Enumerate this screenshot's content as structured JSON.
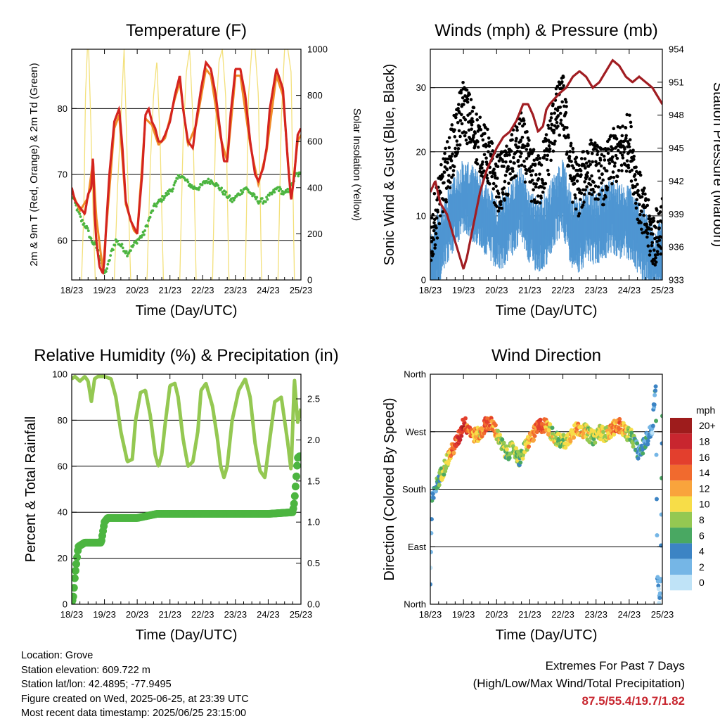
{
  "chart_data": [
    {
      "type": "line",
      "title": "Temperature (F)",
      "xlabel": "Time (Day/UTC)",
      "ylabel": "2m & 9m T (Red, Orange) & 2m Td (Green)",
      "ylabel_right": "Solar Insolation (Yellow)",
      "x_tick_labels": [
        "18/23",
        "19/23",
        "20/23",
        "21/23",
        "22/23",
        "23/23",
        "24/23",
        "25/23"
      ],
      "xlim": [
        0,
        7
      ],
      "ylim": [
        54,
        89
      ],
      "y_ticks": [
        60,
        70,
        80
      ],
      "y2lim": [
        0,
        1000
      ],
      "y2_ticks": [
        0,
        200,
        400,
        600,
        800,
        1000
      ],
      "grid": "horizontal at left-axis major ticks",
      "colors": {
        "t2m": "#d4241f",
        "t9m": "#f08c28",
        "td": "#4cb540",
        "solar": "#f3e07a"
      },
      "series": [
        {
          "name": "2m T",
          "axis": "left",
          "x": [
            0,
            0.1,
            0.25,
            0.4,
            0.5,
            0.6,
            0.65,
            0.7,
            0.75,
            0.85,
            0.95,
            1.0,
            1.05,
            1.15,
            1.3,
            1.45,
            1.55,
            1.65,
            1.8,
            1.9,
            2.0,
            2.15,
            2.25,
            2.35,
            2.45,
            2.55,
            2.65,
            2.75,
            2.85,
            3.0,
            3.15,
            3.3,
            3.4,
            3.55,
            3.7,
            3.8,
            3.95,
            4.1,
            4.25,
            4.4,
            4.55,
            4.65,
            4.75,
            4.85,
            5.0,
            5.15,
            5.3,
            5.45,
            5.6,
            5.7,
            5.85,
            5.95,
            6.05,
            6.25,
            6.45,
            6.6,
            6.7,
            6.8,
            6.9,
            7.0
          ],
          "y": [
            68,
            66,
            65,
            64,
            67,
            68,
            73,
            64,
            60,
            56,
            55,
            57,
            62,
            70,
            78,
            80,
            74,
            66,
            63,
            62,
            61,
            70,
            79,
            80,
            78,
            77,
            75,
            75,
            76,
            78,
            82,
            85,
            80,
            75,
            74,
            78,
            83,
            87,
            86,
            82,
            76,
            72,
            72,
            79,
            86,
            86,
            82,
            75,
            70,
            69,
            71,
            74,
            80,
            86,
            83,
            72,
            66,
            70,
            76,
            77
          ]
        },
        {
          "name": "9m T",
          "axis": "left",
          "x": [
            0,
            0.25,
            0.5,
            0.65,
            0.75,
            0.95,
            1.05,
            1.3,
            1.45,
            1.65,
            1.9,
            2.0,
            2.25,
            2.45,
            2.65,
            2.85,
            3.15,
            3.3,
            3.55,
            3.8,
            4.1,
            4.25,
            4.55,
            4.75,
            5.0,
            5.15,
            5.45,
            5.7,
            5.95,
            6.25,
            6.45,
            6.7,
            6.9,
            7.0
          ],
          "y": [
            67.5,
            64.5,
            66.5,
            72,
            63.5,
            55.5,
            61.5,
            77,
            79,
            65.5,
            61.5,
            61,
            78.5,
            77.5,
            74.5,
            75.5,
            81.5,
            84,
            74.5,
            77.5,
            86,
            85,
            75.5,
            72,
            85,
            85,
            74.5,
            68.5,
            73.5,
            85,
            82,
            66,
            75,
            76
          ]
        },
        {
          "name": "2m Td",
          "axis": "left",
          "x": [
            0,
            0.15,
            0.3,
            0.45,
            0.6,
            0.75,
            0.9,
            1.0,
            1.1,
            1.2,
            1.35,
            1.55,
            1.7,
            1.85,
            2.0,
            2.2,
            2.35,
            2.5,
            2.7,
            2.9,
            3.1,
            3.3,
            3.5,
            3.7,
            3.9,
            4.1,
            4.3,
            4.5,
            4.7,
            4.9,
            5.1,
            5.3,
            5.5,
            5.7,
            5.9,
            6.1,
            6.3,
            6.5,
            6.7,
            6.85,
            7.0
          ],
          "y": [
            67,
            65,
            63,
            62,
            60,
            59,
            57,
            55,
            56,
            58,
            60,
            59,
            58,
            59,
            60,
            61,
            63,
            65,
            66,
            67,
            68,
            70,
            69,
            68,
            68,
            69,
            69,
            68,
            67,
            66,
            67,
            68,
            67,
            66,
            66,
            67,
            68,
            67,
            68,
            70,
            70
          ]
        },
        {
          "name": "Solar Insolation",
          "axis": "right",
          "x": [
            0.3,
            0.37,
            0.42,
            0.5,
            0.58,
            0.65,
            0.72,
            1.3,
            1.4,
            1.5,
            1.6,
            1.7,
            1.8,
            2.3,
            2.4,
            2.5,
            2.6,
            2.7,
            2.8,
            3.3,
            3.4,
            3.5,
            3.6,
            3.7,
            3.8,
            4.3,
            4.4,
            4.5,
            4.6,
            4.7,
            4.8,
            5.3,
            5.4,
            5.5,
            5.6,
            5.7,
            5.8,
            6.3,
            6.4,
            6.5,
            6.6,
            6.7,
            6.8
          ],
          "y": [
            0,
            300,
            800,
            1080,
            700,
            300,
            0,
            0,
            400,
            700,
            1000,
            500,
            0,
            0,
            500,
            800,
            950,
            600,
            0,
            0,
            600,
            900,
            1000,
            700,
            0,
            0,
            700,
            950,
            1000,
            800,
            0,
            0,
            800,
            1000,
            1000,
            800,
            0,
            0,
            700,
            1000,
            1000,
            900,
            0
          ]
        }
      ]
    },
    {
      "type": "scatter",
      "title": "Winds (mph) & Pressure (mb)",
      "xlabel": "Time (Day/UTC)",
      "ylabel": "Sonic Wind & Gust (Blue, Black)",
      "ylabel_right": "Station Pressure (Maroon)",
      "x_tick_labels": [
        "18/23",
        "19/23",
        "20/23",
        "21/23",
        "22/23",
        "23/23",
        "24/23",
        "25/23"
      ],
      "xlim": [
        0,
        7
      ],
      "ylim": [
        0,
        36
      ],
      "y_ticks": [
        0,
        10,
        20,
        30
      ],
      "y2lim": [
        933,
        954
      ],
      "y2_ticks": [
        933,
        936,
        939,
        942,
        945,
        948,
        951,
        954
      ],
      "grid": "horizontal at left-axis major ticks",
      "colors": {
        "wind": "#4f96d2",
        "gust": "#000000",
        "pressure": "#a11d22"
      },
      "series": [
        {
          "name": "Sonic Wind",
          "axis": "left",
          "x": [
            0,
            0.25,
            0.5,
            0.75,
            1.0,
            1.25,
            1.5,
            1.75,
            2.0,
            2.25,
            2.5,
            2.75,
            3.0,
            3.25,
            3.5,
            3.75,
            4.0,
            4.25,
            4.5,
            4.75,
            5.0,
            5.25,
            5.5,
            5.75,
            6.0,
            6.25,
            6.5,
            6.75,
            7.0
          ],
          "y": [
            2,
            6,
            9,
            12,
            14,
            13,
            12,
            10,
            8,
            9,
            11,
            13,
            9,
            8,
            9,
            12,
            14,
            9,
            8,
            10,
            9,
            10,
            11,
            10,
            10,
            8,
            6,
            4,
            5
          ]
        },
        {
          "name": "Gust",
          "axis": "left",
          "x": [
            0,
            0.25,
            0.5,
            0.75,
            1.0,
            1.25,
            1.5,
            1.75,
            2.0,
            2.25,
            2.5,
            2.75,
            3.0,
            3.25,
            3.5,
            3.75,
            4.0,
            4.25,
            4.5,
            4.75,
            5.0,
            5.25,
            5.5,
            5.75,
            6.0,
            6.25,
            6.5,
            6.75,
            7.0
          ],
          "y": [
            6,
            12,
            17,
            22,
            27,
            24,
            21,
            19,
            15,
            16,
            19,
            22,
            17,
            15,
            19,
            25,
            28,
            17,
            14,
            18,
            17,
            16,
            19,
            20,
            22,
            14,
            9,
            6,
            9
          ]
        },
        {
          "name": "Station Pressure",
          "axis": "right",
          "x": [
            0,
            0.15,
            0.3,
            0.5,
            0.7,
            0.9,
            1.0,
            1.1,
            1.3,
            1.5,
            1.7,
            2.0,
            2.2,
            2.4,
            2.6,
            2.8,
            2.95,
            3.1,
            3.25,
            3.4,
            3.5,
            3.6,
            3.75,
            3.9,
            4.1,
            4.3,
            4.5,
            4.7,
            4.9,
            5.1,
            5.3,
            5.5,
            5.7,
            5.9,
            6.1,
            6.3,
            6.5,
            6.7,
            6.9,
            7.0
          ],
          "y": [
            941,
            942,
            940,
            939,
            937,
            935,
            934,
            935,
            938,
            941,
            943,
            945,
            946,
            946.5,
            947.5,
            949,
            949,
            948,
            946.5,
            947,
            948.5,
            949,
            949.5,
            950,
            950.5,
            951.5,
            952,
            951.5,
            950.5,
            951,
            952,
            953,
            952.5,
            951.5,
            951,
            951.5,
            951,
            950.5,
            949.5,
            949
          ]
        }
      ]
    },
    {
      "type": "scatter",
      "title": "Relative Humidity (%) & Precipitation (in)",
      "xlabel": "Time (Day/UTC)",
      "ylabel": "Percent & Total Rainfall",
      "x_tick_labels": [
        "18/23",
        "19/23",
        "20/23",
        "21/23",
        "22/23",
        "23/23",
        "24/23",
        "25/23"
      ],
      "xlim": [
        0,
        7
      ],
      "ylim": [
        0,
        100
      ],
      "y_ticks": [
        0,
        20,
        40,
        60,
        80,
        100
      ],
      "y2lim": [
        0,
        2.8
      ],
      "y2_ticks": [
        "0.0",
        "0.5",
        "1.0",
        "1.5",
        "2.0",
        "2.5"
      ],
      "grid": "horizontal at left-axis major ticks",
      "colors": {
        "rh": "#94c852",
        "precip": "#4cb540"
      },
      "series": [
        {
          "name": "Relative Humidity",
          "axis": "left",
          "x": [
            0,
            0.1,
            0.25,
            0.4,
            0.5,
            0.6,
            0.7,
            0.8,
            1.0,
            1.2,
            1.35,
            1.5,
            1.7,
            1.85,
            1.95,
            2.1,
            2.25,
            2.4,
            2.55,
            2.65,
            2.75,
            2.85,
            3.0,
            3.15,
            3.25,
            3.4,
            3.55,
            3.7,
            3.85,
            3.95,
            4.1,
            4.3,
            4.45,
            4.55,
            4.65,
            4.75,
            4.9,
            5.1,
            5.3,
            5.45,
            5.6,
            5.75,
            5.9,
            6.05,
            6.2,
            6.4,
            6.6,
            6.7,
            6.8,
            6.9,
            7.0
          ],
          "y": [
            98,
            99,
            97,
            99,
            97,
            88,
            98,
            99,
            99,
            98,
            90,
            75,
            62,
            63,
            80,
            92,
            93,
            82,
            65,
            60,
            65,
            78,
            95,
            96,
            90,
            72,
            60,
            62,
            75,
            93,
            96,
            86,
            72,
            60,
            55,
            60,
            80,
            93,
            98,
            90,
            70,
            58,
            55,
            72,
            88,
            90,
            70,
            58,
            98,
            79,
            85
          ]
        },
        {
          "name": "Total Precipitation",
          "axis": "right",
          "x": [
            0,
            0.05,
            0.1,
            0.2,
            0.4,
            0.6,
            0.9,
            1.0,
            1.1,
            2.0,
            2.6,
            3.0,
            4.0,
            5.0,
            6.0,
            6.75,
            6.8,
            6.85,
            6.9,
            6.95,
            7.0
          ],
          "y": [
            0,
            0.1,
            0.35,
            0.7,
            0.75,
            0.75,
            0.75,
            1.0,
            1.05,
            1.05,
            1.1,
            1.1,
            1.1,
            1.1,
            1.1,
            1.12,
            1.25,
            1.5,
            1.78,
            1.8,
            1.8
          ]
        }
      ]
    },
    {
      "type": "scatter",
      "title": "Wind Direction",
      "xlabel": "Time (Day/UTC)",
      "ylabel": "Direction (Colored By Speed)",
      "x_tick_labels": [
        "18/23",
        "19/23",
        "20/23",
        "21/23",
        "22/23",
        "23/23",
        "24/23",
        "25/23"
      ],
      "xlim": [
        0,
        7
      ],
      "ylim": [
        0,
        360
      ],
      "y_ticks": [
        0,
        90,
        180,
        270,
        360
      ],
      "y_tick_labels": [
        "North",
        "East",
        "South",
        "West",
        "North"
      ],
      "grid": "horizontal at direction ticks",
      "legend": {
        "title": "mph",
        "placement": "right",
        "labels": [
          "20+",
          "18",
          "16",
          "14",
          "12",
          "10",
          "8",
          "6",
          "4",
          "2",
          "0"
        ],
        "colors": [
          "#9e1c1c",
          "#c8262f",
          "#e33f2d",
          "#f16a2e",
          "#f9a43c",
          "#f7dd48",
          "#94c852",
          "#49a862",
          "#3c84c4",
          "#75b6e6",
          "#bfe3f7"
        ]
      },
      "series": [
        {
          "name": "Direction",
          "x": [
            0,
            0.05,
            0.15,
            0.25,
            0.35,
            0.5,
            0.7,
            0.9,
            1.0,
            1.15,
            1.3,
            1.5,
            1.7,
            1.9,
            2.1,
            2.3,
            2.5,
            2.7,
            2.9,
            3.1,
            3.3,
            3.5,
            3.7,
            3.9,
            4.1,
            4.3,
            4.5,
            4.7,
            4.9,
            5.1,
            5.3,
            5.5,
            5.7,
            5.9,
            6.1,
            6.3,
            6.5,
            6.7,
            6.8,
            6.85,
            6.9,
            6.95,
            7.0
          ],
          "y": [
            30,
            160,
            180,
            195,
            205,
            225,
            245,
            265,
            285,
            275,
            265,
            265,
            285,
            280,
            255,
            235,
            245,
            225,
            250,
            265,
            280,
            280,
            265,
            255,
            255,
            270,
            275,
            270,
            260,
            270,
            265,
            275,
            280,
            270,
            260,
            235,
            255,
            275,
            350,
            45,
            10,
            30,
            300
          ],
          "speed": [
            2,
            3,
            4,
            6,
            8,
            10,
            14,
            16,
            18,
            14,
            12,
            11,
            15,
            13,
            9,
            7,
            8,
            6,
            10,
            13,
            15,
            12,
            9,
            8,
            9,
            11,
            12,
            10,
            8,
            10,
            9,
            12,
            14,
            10,
            7,
            4,
            4,
            3,
            4,
            3,
            2,
            3,
            5
          ]
        }
      ]
    }
  ],
  "info": {
    "location": "Location: Grove",
    "elevation": "Station elevation: 609.722 m",
    "latlon": "Station lat/lon: 42.4895; -77.9495",
    "created": "Figure created on Wed, 2025-06-25, at 23:39 UTC",
    "recent": "Most recent data timestamp: 2025/06/25 23:15:00"
  },
  "extremes": {
    "title": "Extremes For Past 7 Days",
    "subtitle": "(High/Low/Max Wind/Total Precipitation)",
    "values": "87.5/55.4/19.7/1.82"
  }
}
